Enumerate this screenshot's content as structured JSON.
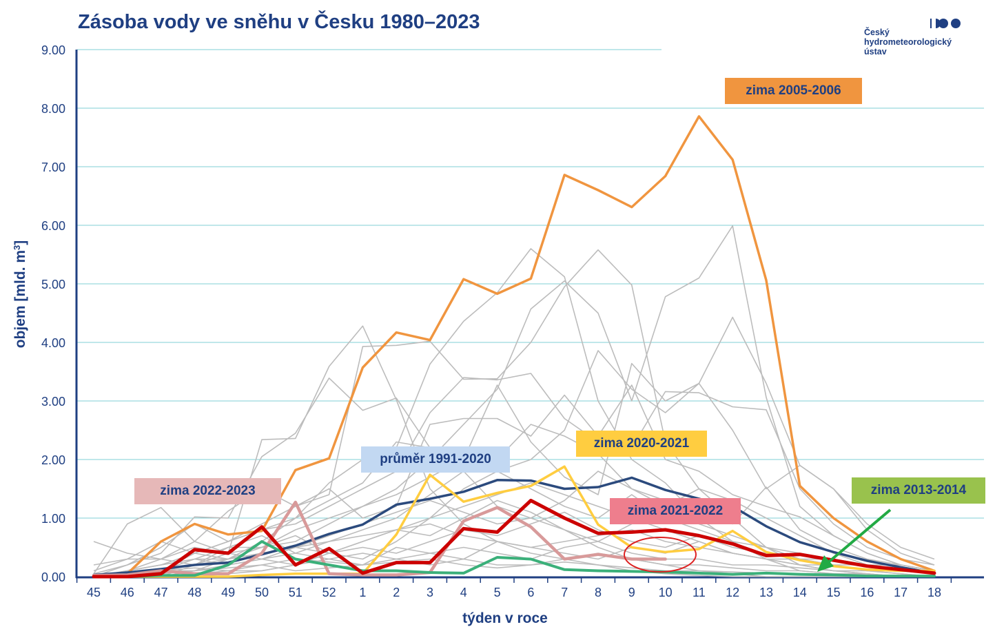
{
  "title": "Zásoba vody ve sněhu v Česku 1980–2023",
  "logo": {
    "line1": "Český",
    "line2": "hydrometeorologický",
    "line3": "ústav"
  },
  "chart_data": {
    "type": "line",
    "categories": [
      "45",
      "46",
      "47",
      "48",
      "49",
      "50",
      "51",
      "52",
      "1",
      "2",
      "3",
      "4",
      "5",
      "6",
      "7",
      "8",
      "9",
      "10",
      "11",
      "12",
      "13",
      "14",
      "15",
      "16",
      "17",
      "18"
    ],
    "xlabel": "týden v roce",
    "ylabel": "objem [mld. m3]",
    "ylim": [
      0,
      9
    ],
    "yticks": [
      "0.00",
      "1.00",
      "2.00",
      "3.00",
      "4.00",
      "5.00",
      "6.00",
      "7.00",
      "8.00",
      "9.00"
    ],
    "grid": true,
    "series": [
      {
        "name": "zima 2005-2006",
        "color": "#f0953f",
        "values": [
          0.02,
          0.05,
          0.6,
          0.9,
          0.72,
          0.78,
          1.82,
          2.02,
          3.57,
          4.17,
          4.04,
          5.08,
          4.83,
          5.09,
          6.86,
          6.6,
          6.31,
          6.84,
          7.86,
          7.12,
          5.06,
          1.55,
          1.0,
          0.6,
          0.3,
          0.1
        ]
      },
      {
        "name": "průměr 1991-2020",
        "color": "#2b4a7d",
        "values": [
          0.03,
          0.07,
          0.13,
          0.2,
          0.24,
          0.38,
          0.53,
          0.73,
          0.89,
          1.23,
          1.33,
          1.45,
          1.65,
          1.64,
          1.5,
          1.53,
          1.69,
          1.48,
          1.33,
          1.2,
          0.86,
          0.59,
          0.42,
          0.27,
          0.16,
          0.06
        ]
      },
      {
        "name": "zima 2020-2021",
        "color": "#ffcd40",
        "values": [
          0.0,
          0.0,
          0.0,
          0.0,
          0.0,
          0.03,
          0.05,
          0.05,
          0.05,
          0.72,
          1.74,
          1.28,
          1.43,
          1.55,
          1.88,
          0.89,
          0.5,
          0.42,
          0.47,
          0.78,
          0.42,
          0.28,
          0.18,
          0.12,
          0.1,
          0.1
        ]
      },
      {
        "name": "zima 2022-2023",
        "color": "#d89a9a",
        "values": [
          0.02,
          0.03,
          0.1,
          0.05,
          0.05,
          0.4,
          1.27,
          0.05,
          0.03,
          0.03,
          0.07,
          0.95,
          1.18,
          0.85,
          0.3,
          0.38,
          0.3,
          0.3,
          null,
          null,
          null,
          null,
          null,
          null,
          null,
          null
        ]
      },
      {
        "name": "zima 2013-2014",
        "color": "#3bb07a",
        "values": [
          0.0,
          0.0,
          0.02,
          0.02,
          0.2,
          0.6,
          0.3,
          0.2,
          0.1,
          0.1,
          0.07,
          0.06,
          0.33,
          0.3,
          0.12,
          0.1,
          0.09,
          0.08,
          0.06,
          0.04,
          0.06,
          0.04,
          0.03,
          0.01,
          0.01,
          0.01
        ]
      },
      {
        "name": "zima 2021-2022",
        "color": "#cc0000",
        "values": [
          0.0,
          0.0,
          0.05,
          0.46,
          0.4,
          0.85,
          0.2,
          0.48,
          0.06,
          0.24,
          0.24,
          0.82,
          0.76,
          1.3,
          1.0,
          0.74,
          0.76,
          0.8,
          0.7,
          0.56,
          0.36,
          0.38,
          0.28,
          0.18,
          0.12,
          0.06
        ]
      }
    ],
    "other_years_color": "#bcbcbc",
    "other_years": [
      [
        0.05,
        0.9,
        1.18,
        0.6,
        0.4,
        2.34,
        2.36,
        3.59,
        4.28,
        3.02,
        1.5,
        0.9,
        0.6,
        0.4,
        0.3,
        0.2,
        0.1,
        0.05,
        0.02,
        0.0,
        0.0,
        0.0,
        0.0,
        0.0,
        0.0,
        0.0
      ],
      [
        0.0,
        0.2,
        0.4,
        1.02,
        1.0,
        2.05,
        2.45,
        3.39,
        2.84,
        3.05,
        2.2,
        1.8,
        1.2,
        1.0,
        0.8,
        0.5,
        0.3,
        0.2,
        0.1,
        0.05,
        0.0,
        0.0,
        0.0,
        0.0,
        0.0,
        0.0
      ],
      [
        0.0,
        0.1,
        0.3,
        0.6,
        1.12,
        1.5,
        1.2,
        1.4,
        3.93,
        3.95,
        4.02,
        3.37,
        3.38,
        4.0,
        4.95,
        5.58,
        4.98,
        2.3,
        1.5,
        1.0,
        0.5,
        0.2,
        0.1,
        0.05,
        0.0,
        0.0
      ],
      [
        0.0,
        0.0,
        0.1,
        0.4,
        0.6,
        0.8,
        1.0,
        1.6,
        2.0,
        2.2,
        3.63,
        4.36,
        4.85,
        5.6,
        5.12,
        3.0,
        2.0,
        1.6,
        1.0,
        0.6,
        0.3,
        0.1,
        0.05,
        0.0,
        0.0,
        0.0
      ],
      [
        0.0,
        0.0,
        0.0,
        0.2,
        0.4,
        0.5,
        0.8,
        1.0,
        1.2,
        1.5,
        2.0,
        2.6,
        3.2,
        4.57,
        5.05,
        4.5,
        3.0,
        4.78,
        5.1,
        5.99,
        3.06,
        1.2,
        0.7,
        0.4,
        0.2,
        0.1
      ],
      [
        0.0,
        0.0,
        0.0,
        0.1,
        0.3,
        0.6,
        1.0,
        1.3,
        1.6,
        2.3,
        2.2,
        2.1,
        1.8,
        2.0,
        2.5,
        3.86,
        3.2,
        2.8,
        3.3,
        4.43,
        3.3,
        1.9,
        1.5,
        0.8,
        0.4,
        0.2
      ],
      [
        0.05,
        0.2,
        0.5,
        0.9,
        0.6,
        0.8,
        0.9,
        1.2,
        1.5,
        1.8,
        2.8,
        3.4,
        3.36,
        3.47,
        2.7,
        2.3,
        2.2,
        3.16,
        3.14,
        2.9,
        2.85,
        1.5,
        0.9,
        0.5,
        0.3,
        0.2
      ],
      [
        0.0,
        0.1,
        0.2,
        0.4,
        0.6,
        0.9,
        1.2,
        1.5,
        1.0,
        1.2,
        2.6,
        2.7,
        2.7,
        2.4,
        3.1,
        2.4,
        3.27,
        2.0,
        1.8,
        1.4,
        1.2,
        1.02,
        0.7,
        0.4,
        0.2,
        0.1
      ],
      [
        0.0,
        0.0,
        0.1,
        0.3,
        0.5,
        0.5,
        0.6,
        0.9,
        1.2,
        1.4,
        1.7,
        2.0,
        3.27,
        2.3,
        1.7,
        1.4,
        3.64,
        3.0,
        3.3,
        2.5,
        1.5,
        1.9,
        1.5,
        0.9,
        0.5,
        0.3
      ],
      [
        0.6,
        0.4,
        0.3,
        0.2,
        0.5,
        0.7,
        0.4,
        0.6,
        0.8,
        1.0,
        1.4,
        1.8,
        2.0,
        2.6,
        2.4,
        2.1,
        1.5,
        1.2,
        1.5,
        1.3,
        1.0,
        0.7,
        0.4,
        0.2,
        0.1,
        0.05
      ],
      [
        0.1,
        0.3,
        0.6,
        0.4,
        0.3,
        0.5,
        0.7,
        0.4,
        0.3,
        0.6,
        1.0,
        1.5,
        1.8,
        1.5,
        1.2,
        1.0,
        1.4,
        1.0,
        0.8,
        0.6,
        0.5,
        0.4,
        0.3,
        0.2,
        0.1,
        0.05
      ],
      [
        0.0,
        0.0,
        0.1,
        0.2,
        0.3,
        0.4,
        0.5,
        0.7,
        0.9,
        1.1,
        1.3,
        1.1,
        0.9,
        1.0,
        1.3,
        1.8,
        1.5,
        1.3,
        1.1,
        0.9,
        1.53,
        0.8,
        0.5,
        0.3,
        0.2,
        0.1
      ],
      [
        0.0,
        0.1,
        0.2,
        0.3,
        0.2,
        0.3,
        0.5,
        0.4,
        0.6,
        0.8,
        0.7,
        1.0,
        1.3,
        1.1,
        0.8,
        0.6,
        0.9,
        1.2,
        0.9,
        0.7,
        0.5,
        0.3,
        0.2,
        0.1,
        0.05,
        0.0
      ],
      [
        0.0,
        0.0,
        0.1,
        0.1,
        0.2,
        0.3,
        0.2,
        0.4,
        0.5,
        0.4,
        0.6,
        0.8,
        0.7,
        0.9,
        1.1,
        0.8,
        0.6,
        0.5,
        0.7,
        0.5,
        0.4,
        0.3,
        0.3,
        0.2,
        0.2,
        0.1
      ],
      [
        0.2,
        0.3,
        0.3,
        0.5,
        0.4,
        0.3,
        0.4,
        0.3,
        0.2,
        0.5,
        0.4,
        0.3,
        0.6,
        0.5,
        0.4,
        0.3,
        0.5,
        0.4,
        0.6,
        0.4,
        0.3,
        0.2,
        0.2,
        0.1,
        0.1,
        0.05
      ],
      [
        0.0,
        0.05,
        0.1,
        0.15,
        0.1,
        0.2,
        0.3,
        0.25,
        0.2,
        0.3,
        0.4,
        0.5,
        0.4,
        0.3,
        0.5,
        0.6,
        0.4,
        0.3,
        0.3,
        0.2,
        0.2,
        0.15,
        0.1,
        0.1,
        0.05,
        0.0
      ],
      [
        0.0,
        0.0,
        0.0,
        0.05,
        0.1,
        0.1,
        0.2,
        0.3,
        0.4,
        0.3,
        0.2,
        0.3,
        0.2,
        0.2,
        0.3,
        0.4,
        0.3,
        0.2,
        0.2,
        0.15,
        0.1,
        0.1,
        0.05,
        0.05,
        0.0,
        0.0
      ],
      [
        0.0,
        0.0,
        0.05,
        0.1,
        0.15,
        0.2,
        0.1,
        0.15,
        0.2,
        0.25,
        0.3,
        0.2,
        0.15,
        0.2,
        0.25,
        0.2,
        0.15,
        0.1,
        0.1,
        0.08,
        0.06,
        0.05,
        0.04,
        0.03,
        0.02,
        0.0
      ],
      [
        0.0,
        0.1,
        0.2,
        0.3,
        0.3,
        0.4,
        0.5,
        0.6,
        0.7,
        0.8,
        0.9,
        0.7,
        0.6,
        0.5,
        0.6,
        0.7,
        0.8,
        0.6,
        0.5,
        0.4,
        0.3,
        0.3,
        0.2,
        0.2,
        0.1,
        0.1
      ],
      [
        0.0,
        0.0,
        0.0,
        0.0,
        0.05,
        0.1,
        0.2,
        0.4,
        0.6,
        0.8,
        1.0,
        1.2,
        1.4,
        1.6,
        1.4,
        1.2,
        1.0,
        0.8,
        0.6,
        0.4,
        0.3,
        0.2,
        0.1,
        0.05,
        0.0,
        0.0
      ]
    ],
    "annotations": [
      {
        "text": "zima 2005-2006",
        "bg": "#f0953f"
      },
      {
        "text": "průměr 1991-2020",
        "bg": "#c2d8f2"
      },
      {
        "text": "zima 2020-2021",
        "bg": "#ffcd40"
      },
      {
        "text": "zima 2022-2023",
        "bg": "#e6b8b8"
      },
      {
        "text": "zima 2021-2022",
        "bg": "#ee7e8d"
      },
      {
        "text": "zima 2013-2014",
        "bg": "#99c24d"
      }
    ],
    "highlight_ellipse_color": "#dd2222",
    "arrow_color": "#22aa44"
  }
}
